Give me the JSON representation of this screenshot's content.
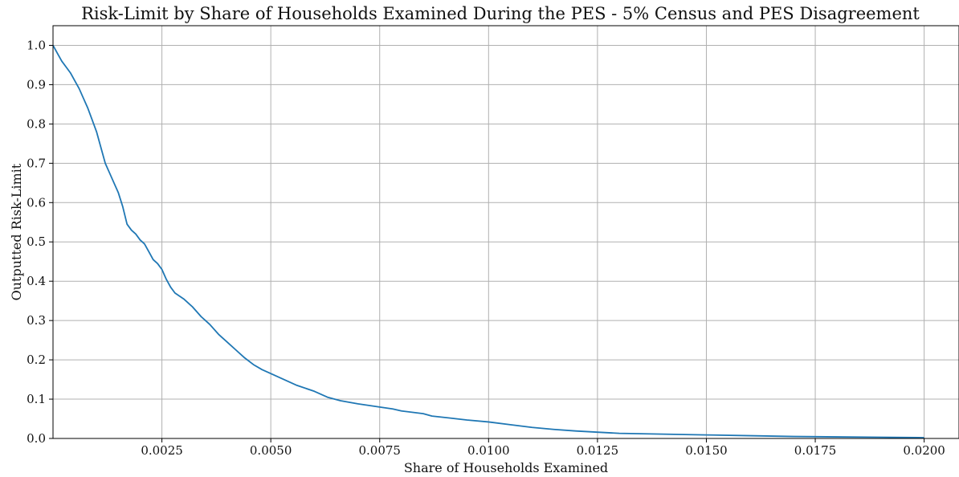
{
  "chart_data": {
    "type": "line",
    "title": "Risk-Limit by Share of Households Examined During the PES - 5% Census and PES Disagreement",
    "xlabel": "Share of Households Examined",
    "ylabel": "Outputted Risk-Limit",
    "xlim": [
      0.0,
      0.0208
    ],
    "ylim": [
      0.0,
      1.05
    ],
    "xticks": [
      0.0025,
      0.005,
      0.0075,
      0.01,
      0.0125,
      0.015,
      0.0175,
      0.02
    ],
    "xtick_labels": [
      "0.0025",
      "0.0050",
      "0.0075",
      "0.0100",
      "0.0125",
      "0.0150",
      "0.0175",
      "0.0200"
    ],
    "yticks": [
      0.0,
      0.1,
      0.2,
      0.3,
      0.4,
      0.5,
      0.6,
      0.7,
      0.8,
      0.9,
      1.0
    ],
    "ytick_labels": [
      "0.0",
      "0.1",
      "0.2",
      "0.3",
      "0.4",
      "0.5",
      "0.6",
      "0.7",
      "0.8",
      "0.9",
      "1.0"
    ],
    "grid": true,
    "series": [
      {
        "color": "#1f77b4",
        "x": [
          0.0,
          0.0001,
          0.0002,
          0.0003,
          0.0004,
          0.0005,
          0.0006,
          0.0007,
          0.0008,
          0.0009,
          0.001,
          0.0011,
          0.0012,
          0.0013,
          0.0014,
          0.0015,
          0.0016,
          0.0017,
          0.0018,
          0.0019,
          0.002,
          0.0021,
          0.0022,
          0.0023,
          0.0024,
          0.0025,
          0.0026,
          0.0027,
          0.0028,
          0.003,
          0.0032,
          0.0034,
          0.0036,
          0.0038,
          0.004,
          0.0042,
          0.0044,
          0.0046,
          0.0048,
          0.005,
          0.0053,
          0.0056,
          0.006,
          0.0063,
          0.0066,
          0.007,
          0.0075,
          0.0078,
          0.008,
          0.0085,
          0.0087,
          0.0091,
          0.0095,
          0.01,
          0.0105,
          0.011,
          0.0115,
          0.012,
          0.0125,
          0.013,
          0.014,
          0.015,
          0.016,
          0.017,
          0.018,
          0.019,
          0.02
        ],
        "y": [
          1.0,
          0.98,
          0.96,
          0.945,
          0.93,
          0.91,
          0.89,
          0.865,
          0.84,
          0.81,
          0.78,
          0.74,
          0.7,
          0.675,
          0.65,
          0.625,
          0.59,
          0.545,
          0.53,
          0.52,
          0.505,
          0.495,
          0.475,
          0.455,
          0.445,
          0.43,
          0.405,
          0.385,
          0.37,
          0.355,
          0.335,
          0.31,
          0.29,
          0.265,
          0.245,
          0.225,
          0.205,
          0.188,
          0.175,
          0.165,
          0.15,
          0.135,
          0.12,
          0.105,
          0.096,
          0.088,
          0.08,
          0.075,
          0.07,
          0.063,
          0.057,
          0.052,
          0.047,
          0.042,
          0.035,
          0.028,
          0.023,
          0.019,
          0.016,
          0.013,
          0.011,
          0.009,
          0.007,
          0.005,
          0.004,
          0.003,
          0.002
        ]
      }
    ]
  }
}
